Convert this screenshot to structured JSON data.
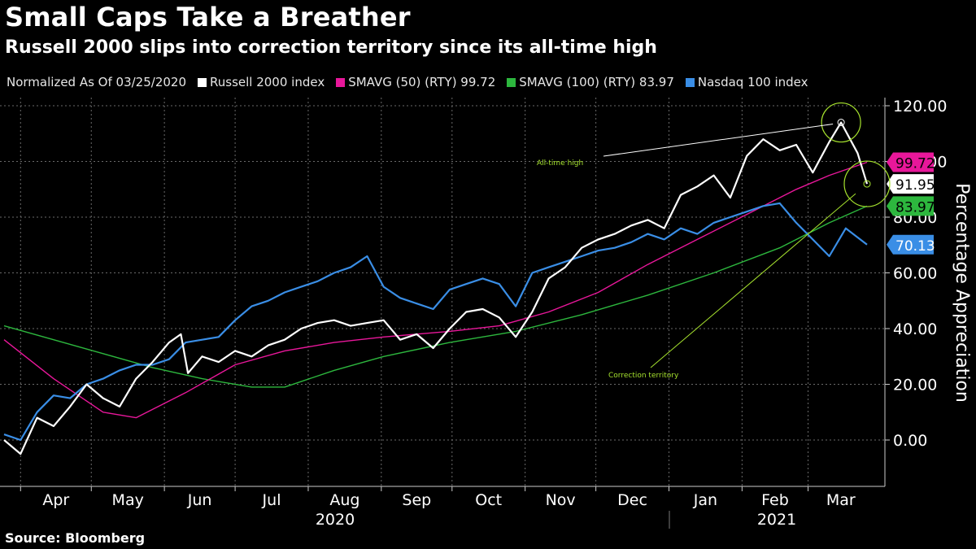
{
  "header": {
    "title": "Small Caps Take a Breather",
    "subtitle": "Russell 2000 slips into correction territory since its all-time high"
  },
  "legend": {
    "prefix": "Normalized As Of 03/25/2020",
    "items": [
      {
        "label": "Russell 2000 index",
        "color": "#ffffff"
      },
      {
        "label": "SMAVG (50) (RTY) 99.72",
        "color": "#e8179a"
      },
      {
        "label": "SMAVG (100) (RTY) 83.97",
        "color": "#2db73e"
      },
      {
        "label": "Nasdaq 100 index",
        "color": "#3a8ee6"
      }
    ]
  },
  "source": "Source: Bloomberg",
  "chart_data": {
    "type": "line",
    "ylabel": "Percentage Appreciation",
    "ylim": [
      -17,
      125
    ],
    "yticks": [
      "0.00",
      "20.00",
      "40.00",
      "60.00",
      "80.00",
      "100.00",
      "120.00"
    ],
    "ytick_values": [
      0,
      20,
      40,
      60,
      80,
      100,
      120
    ],
    "x_month_labels": [
      "Apr",
      "May",
      "Jun",
      "Jul",
      "Aug",
      "Sep",
      "Oct",
      "Nov",
      "Dec",
      "Jan",
      "Feb",
      "Mar"
    ],
    "x_year_labels": [
      "2020",
      "2021"
    ],
    "series": [
      {
        "name": "Russell 2000 index",
        "color": "#ffffff",
        "last_value_label": "91.95",
        "label_text_color": "#000000",
        "x": [
          "2020-03-25",
          "2020-04-01",
          "2020-04-08",
          "2020-04-15",
          "2020-04-22",
          "2020-04-29",
          "2020-05-06",
          "2020-05-13",
          "2020-05-20",
          "2020-05-27",
          "2020-06-03",
          "2020-06-08",
          "2020-06-11",
          "2020-06-17",
          "2020-06-24",
          "2020-07-01",
          "2020-07-08",
          "2020-07-15",
          "2020-07-22",
          "2020-07-29",
          "2020-08-05",
          "2020-08-12",
          "2020-08-19",
          "2020-08-26",
          "2020-09-02",
          "2020-09-09",
          "2020-09-16",
          "2020-09-23",
          "2020-09-30",
          "2020-10-07",
          "2020-10-14",
          "2020-10-21",
          "2020-10-28",
          "2020-11-04",
          "2020-11-11",
          "2020-11-18",
          "2020-11-25",
          "2020-12-02",
          "2020-12-09",
          "2020-12-16",
          "2020-12-23",
          "2020-12-30",
          "2021-01-06",
          "2021-01-13",
          "2021-01-20",
          "2021-01-27",
          "2021-02-03",
          "2021-02-10",
          "2021-02-17",
          "2021-02-24",
          "2021-03-03",
          "2021-03-10",
          "2021-03-15",
          "2021-03-22",
          "2021-03-26"
        ],
        "values": [
          0,
          -5,
          8,
          5,
          12,
          20,
          15,
          12,
          22,
          28,
          35,
          38,
          24,
          30,
          28,
          32,
          30,
          34,
          36,
          40,
          42,
          43,
          41,
          42,
          43,
          36,
          38,
          33,
          40,
          46,
          47,
          44,
          37,
          46,
          58,
          62,
          69,
          72,
          74,
          77,
          79,
          76,
          88,
          91,
          95,
          87,
          102,
          108,
          104,
          106,
          96,
          107,
          114,
          103,
          91.95
        ]
      },
      {
        "name": "SMAVG (50) (RTY)",
        "color": "#e8179a",
        "last_value_label": "99.72",
        "label_text_color": "#000000",
        "x": [
          "2020-03-25",
          "2020-04-15",
          "2020-05-06",
          "2020-05-20",
          "2020-06-10",
          "2020-07-01",
          "2020-07-22",
          "2020-08-12",
          "2020-09-02",
          "2020-09-30",
          "2020-10-21",
          "2020-11-11",
          "2020-12-02",
          "2020-12-23",
          "2021-01-13",
          "2021-02-03",
          "2021-02-24",
          "2021-03-10",
          "2021-03-26"
        ],
        "values": [
          36,
          22,
          10,
          8,
          17,
          27,
          32,
          35,
          37,
          39,
          41,
          46,
          53,
          63,
          72,
          81,
          90,
          95,
          99.72
        ]
      },
      {
        "name": "SMAVG (100) (RTY)",
        "color": "#2db73e",
        "last_value_label": "83.97",
        "label_text_color": "#000000",
        "x": [
          "2020-03-25",
          "2020-04-15",
          "2020-05-06",
          "2020-05-27",
          "2020-06-17",
          "2020-07-08",
          "2020-07-22",
          "2020-08-12",
          "2020-09-02",
          "2020-09-30",
          "2020-10-28",
          "2020-11-25",
          "2020-12-23",
          "2021-01-20",
          "2021-02-17",
          "2021-03-10",
          "2021-03-26"
        ],
        "values": [
          41,
          36,
          31,
          26,
          22,
          19,
          19,
          25,
          30,
          35,
          39,
          45,
          52,
          60,
          69,
          78,
          83.97
        ]
      },
      {
        "name": "Nasdaq 100 index",
        "color": "#3a8ee6",
        "last_value_label": "70.13",
        "label_text_color": "#ffffff",
        "x": [
          "2020-03-25",
          "2020-04-01",
          "2020-04-08",
          "2020-04-15",
          "2020-04-22",
          "2020-04-29",
          "2020-05-06",
          "2020-05-13",
          "2020-05-20",
          "2020-05-27",
          "2020-06-03",
          "2020-06-10",
          "2020-06-17",
          "2020-06-24",
          "2020-07-01",
          "2020-07-08",
          "2020-07-15",
          "2020-07-22",
          "2020-07-29",
          "2020-08-05",
          "2020-08-12",
          "2020-08-19",
          "2020-08-26",
          "2020-09-02",
          "2020-09-09",
          "2020-09-16",
          "2020-09-23",
          "2020-09-30",
          "2020-10-07",
          "2020-10-14",
          "2020-10-21",
          "2020-10-28",
          "2020-11-04",
          "2020-11-11",
          "2020-11-18",
          "2020-11-25",
          "2020-12-02",
          "2020-12-09",
          "2020-12-16",
          "2020-12-23",
          "2020-12-30",
          "2021-01-06",
          "2021-01-13",
          "2021-01-20",
          "2021-01-27",
          "2021-02-03",
          "2021-02-10",
          "2021-02-17",
          "2021-02-24",
          "2021-03-03",
          "2021-03-10",
          "2021-03-17",
          "2021-03-26"
        ],
        "values": [
          2,
          0,
          10,
          16,
          15,
          20,
          22,
          25,
          27,
          27,
          29,
          35,
          36,
          37,
          43,
          48,
          50,
          53,
          55,
          57,
          60,
          62,
          66,
          55,
          51,
          49,
          47,
          54,
          56,
          58,
          56,
          48,
          60,
          62,
          64,
          66,
          68,
          69,
          71,
          74,
          72,
          76,
          74,
          78,
          80,
          82,
          84,
          85,
          78,
          72,
          66,
          76,
          70.13
        ]
      }
    ],
    "annotations": [
      {
        "text": "All-time high",
        "color": "#a6e22e"
      },
      {
        "text": "Correction territory",
        "color": "#a6e22e"
      }
    ]
  }
}
